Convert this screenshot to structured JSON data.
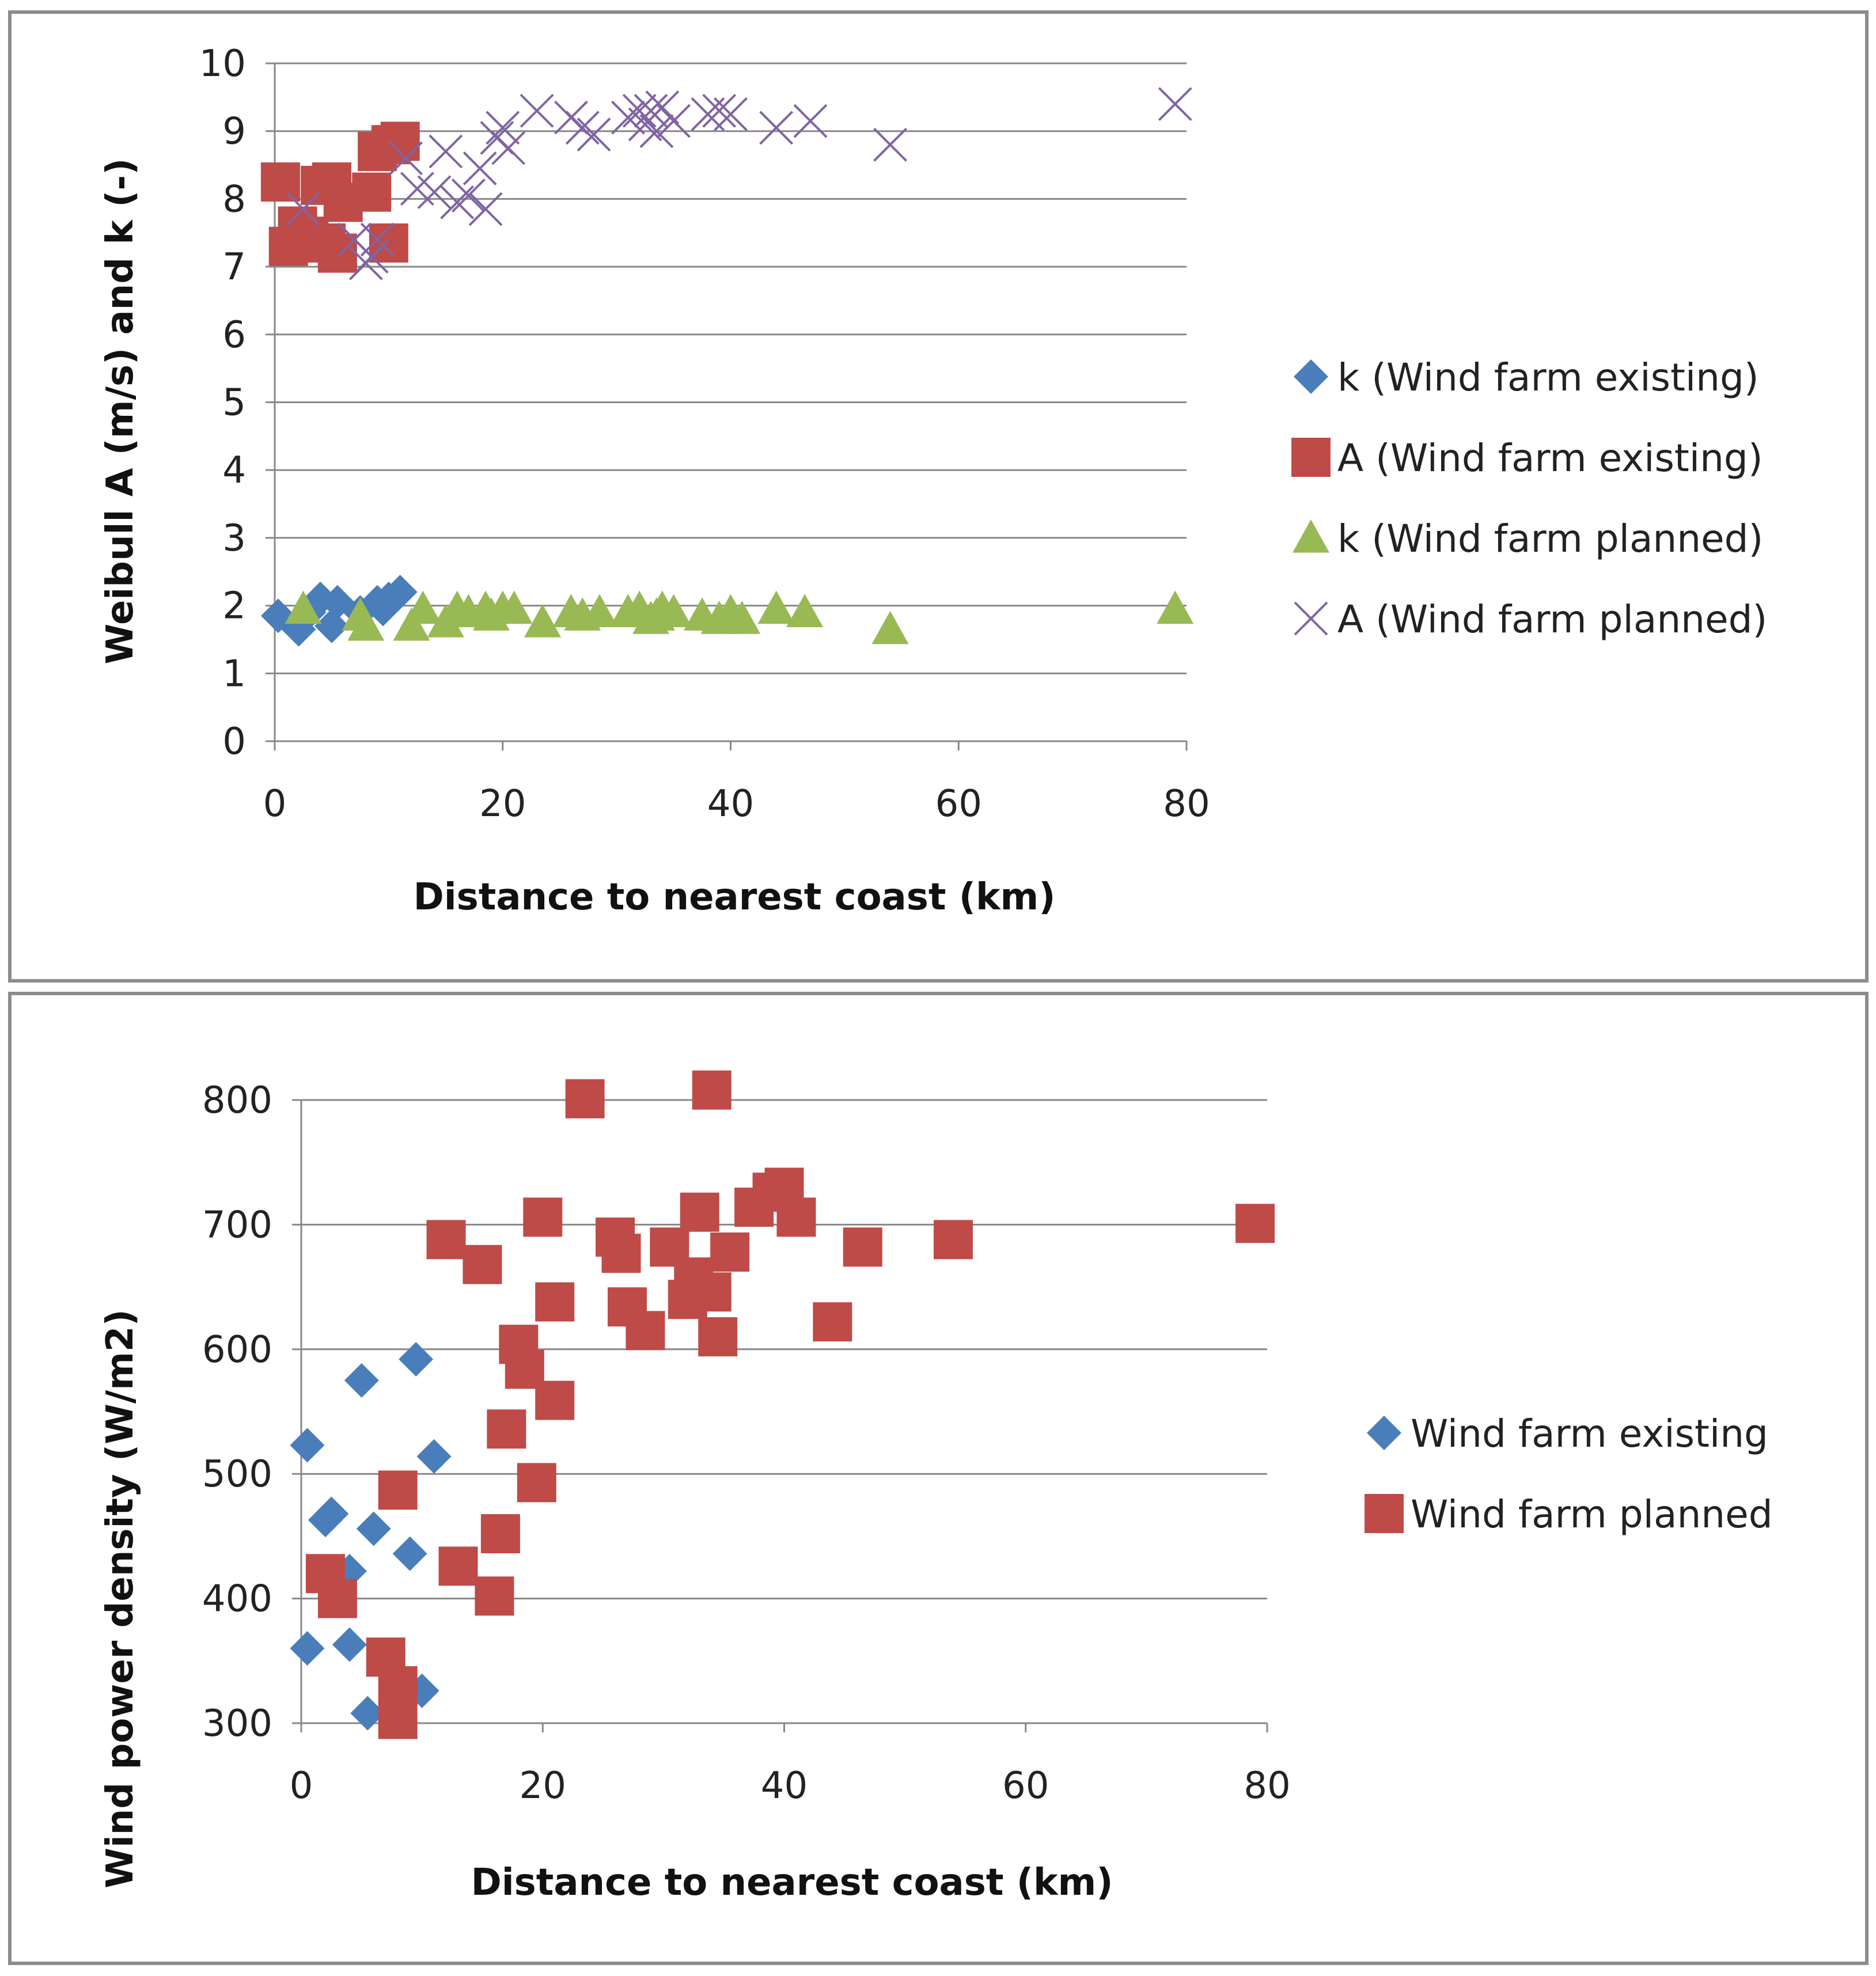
{
  "colors": {
    "k_existing": "#4a7ebb",
    "a_existing": "#be4b48",
    "k_planned": "#98b954",
    "a_planned": "#8064a2",
    "grid": "#888888",
    "axis": "#888888"
  },
  "chart_data": [
    {
      "type": "scatter",
      "title": "",
      "xlabel": "Distance to nearest coast (km)",
      "ylabel": "Weibull A (m/s) and k (-)",
      "xlim": [
        0,
        80
      ],
      "ylim": [
        0,
        10
      ],
      "xticks": [
        "0",
        "20",
        "40",
        "60",
        "80"
      ],
      "yticks": [
        "0",
        "1",
        "2",
        "3",
        "4",
        "5",
        "6",
        "7",
        "8",
        "9",
        "10"
      ],
      "legend_position": "right",
      "series": [
        {
          "name": "k (Wind farm existing)",
          "marker": "diamond",
          "color": "#4a7ebb",
          "points": [
            [
              0.3,
              1.85
            ],
            [
              2.1,
              1.65
            ],
            [
              3.0,
              1.9
            ],
            [
              4.0,
              2.1
            ],
            [
              5.0,
              1.7
            ],
            [
              5.5,
              2.05
            ],
            [
              7.5,
              1.9
            ],
            [
              9.0,
              2.05
            ],
            [
              9.5,
              1.95
            ],
            [
              10.0,
              2.1
            ],
            [
              11.0,
              2.2
            ]
          ]
        },
        {
          "name": "A (Wind farm existing)",
          "marker": "square",
          "color": "#be4b48",
          "points": [
            [
              0.5,
              8.25
            ],
            [
              1.2,
              7.3
            ],
            [
              2.0,
              7.6
            ],
            [
              3.0,
              7.45
            ],
            [
              4.0,
              8.2
            ],
            [
              4.5,
              7.35
            ],
            [
              5.0,
              8.25
            ],
            [
              5.5,
              7.2
            ],
            [
              6.0,
              7.95
            ],
            [
              8.5,
              8.1
            ],
            [
              9.0,
              8.7
            ],
            [
              10.0,
              7.35
            ],
            [
              10.2,
              8.8
            ],
            [
              11.0,
              8.85
            ]
          ]
        },
        {
          "name": "k (Wind farm planned)",
          "marker": "triangle",
          "color": "#98b954",
          "points": [
            [
              2.5,
              1.95
            ],
            [
              7.5,
              1.85
            ],
            [
              8.0,
              1.7
            ],
            [
              12.0,
              1.7
            ],
            [
              13.0,
              1.95
            ],
            [
              15.0,
              1.75
            ],
            [
              16.0,
              1.95
            ],
            [
              17.0,
              1.9
            ],
            [
              18.5,
              1.95
            ],
            [
              19.0,
              1.85
            ],
            [
              20.0,
              1.95
            ],
            [
              21.0,
              1.95
            ],
            [
              23.5,
              1.75
            ],
            [
              26.0,
              1.9
            ],
            [
              27.0,
              1.85
            ],
            [
              28.5,
              1.9
            ],
            [
              31.0,
              1.9
            ],
            [
              32.0,
              1.95
            ],
            [
              33.0,
              1.8
            ],
            [
              33.5,
              1.85
            ],
            [
              34.0,
              1.95
            ],
            [
              35.0,
              1.9
            ],
            [
              37.5,
              1.85
            ],
            [
              39.0,
              1.8
            ],
            [
              40.0,
              1.9
            ],
            [
              41.0,
              1.8
            ],
            [
              44.0,
              1.95
            ],
            [
              46.5,
              1.9
            ],
            [
              54.0,
              1.65
            ],
            [
              79.0,
              1.95
            ]
          ]
        },
        {
          "name": "A (Wind farm planned)",
          "marker": "x",
          "color": "#8064a2",
          "points": [
            [
              2.5,
              7.85
            ],
            [
              7.0,
              7.4
            ],
            [
              8.0,
              7.05
            ],
            [
              8.5,
              7.15
            ],
            [
              9.0,
              7.4
            ],
            [
              11.5,
              8.6
            ],
            [
              12.5,
              8.15
            ],
            [
              14.0,
              8.1
            ],
            [
              15.0,
              8.7
            ],
            [
              16.0,
              7.95
            ],
            [
              17.0,
              8.05
            ],
            [
              18.0,
              8.45
            ],
            [
              18.5,
              7.85
            ],
            [
              19.5,
              8.9
            ],
            [
              20.0,
              9.05
            ],
            [
              20.5,
              8.75
            ],
            [
              23.0,
              9.3
            ],
            [
              26.0,
              9.2
            ],
            [
              27.0,
              9.05
            ],
            [
              28.0,
              8.95
            ],
            [
              31.0,
              9.2
            ],
            [
              32.0,
              9.3
            ],
            [
              32.5,
              9.1
            ],
            [
              33.0,
              9.3
            ],
            [
              33.5,
              9.0
            ],
            [
              34.0,
              9.35
            ],
            [
              35.0,
              9.15
            ],
            [
              38.0,
              9.25
            ],
            [
              39.0,
              9.3
            ],
            [
              40.0,
              9.25
            ],
            [
              44.0,
              9.05
            ],
            [
              47.0,
              9.15
            ],
            [
              54.0,
              8.8
            ],
            [
              79.0,
              9.4
            ]
          ]
        }
      ]
    },
    {
      "type": "scatter",
      "title": "",
      "xlabel": "Distance to nearest coast (km)",
      "ylabel": "Wind power density (W/m2)",
      "xlim": [
        0,
        80
      ],
      "ylim": [
        300,
        800
      ],
      "xticks": [
        "0",
        "20",
        "40",
        "60",
        "80"
      ],
      "yticks": [
        "300",
        "400",
        "500",
        "600",
        "700",
        "800"
      ],
      "legend_position": "right",
      "series": [
        {
          "name": "Wind farm existing",
          "marker": "diamond",
          "color": "#4a7ebb",
          "points": [
            [
              0.5,
              523
            ],
            [
              0.5,
              360
            ],
            [
              2.0,
              463
            ],
            [
              2.5,
              468
            ],
            [
              4.0,
              422
            ],
            [
              4.0,
              363
            ],
            [
              5.0,
              575
            ],
            [
              5.5,
              308
            ],
            [
              6.0,
              456
            ],
            [
              9.0,
              436
            ],
            [
              9.5,
              592
            ],
            [
              10.0,
              326
            ],
            [
              11.0,
              514
            ]
          ]
        },
        {
          "name": "Wind farm planned",
          "marker": "square",
          "color": "#be4b48",
          "points": [
            [
              2.0,
              420
            ],
            [
              3.0,
              400
            ],
            [
              7.0,
              353
            ],
            [
              8.0,
              487
            ],
            [
              8.0,
              330
            ],
            [
              8.0,
              303
            ],
            [
              12.0,
              688
            ],
            [
              13.0,
              426
            ],
            [
              15.0,
              668
            ],
            [
              16.0,
              402
            ],
            [
              16.5,
              452
            ],
            [
              17.0,
              536
            ],
            [
              18.0,
              604
            ],
            [
              18.5,
              584
            ],
            [
              19.5,
              493
            ],
            [
              20.0,
              706
            ],
            [
              21.0,
              638
            ],
            [
              21.0,
              559
            ],
            [
              23.5,
              801
            ],
            [
              26.0,
              690
            ],
            [
              26.5,
              677
            ],
            [
              27.0,
              634
            ],
            [
              28.5,
              615
            ],
            [
              30.5,
              682
            ],
            [
              32.0,
              640
            ],
            [
              32.5,
              658
            ],
            [
              33.0,
              710
            ],
            [
              34.0,
              646
            ],
            [
              34.0,
              808
            ],
            [
              34.5,
              610
            ],
            [
              35.5,
              678
            ],
            [
              37.5,
              714
            ],
            [
              39.0,
              726
            ],
            [
              40.0,
              730
            ],
            [
              41.0,
              706
            ],
            [
              44.0,
              622
            ],
            [
              46.5,
              682
            ],
            [
              54.0,
              688
            ],
            [
              79.0,
              701
            ]
          ]
        }
      ]
    }
  ]
}
